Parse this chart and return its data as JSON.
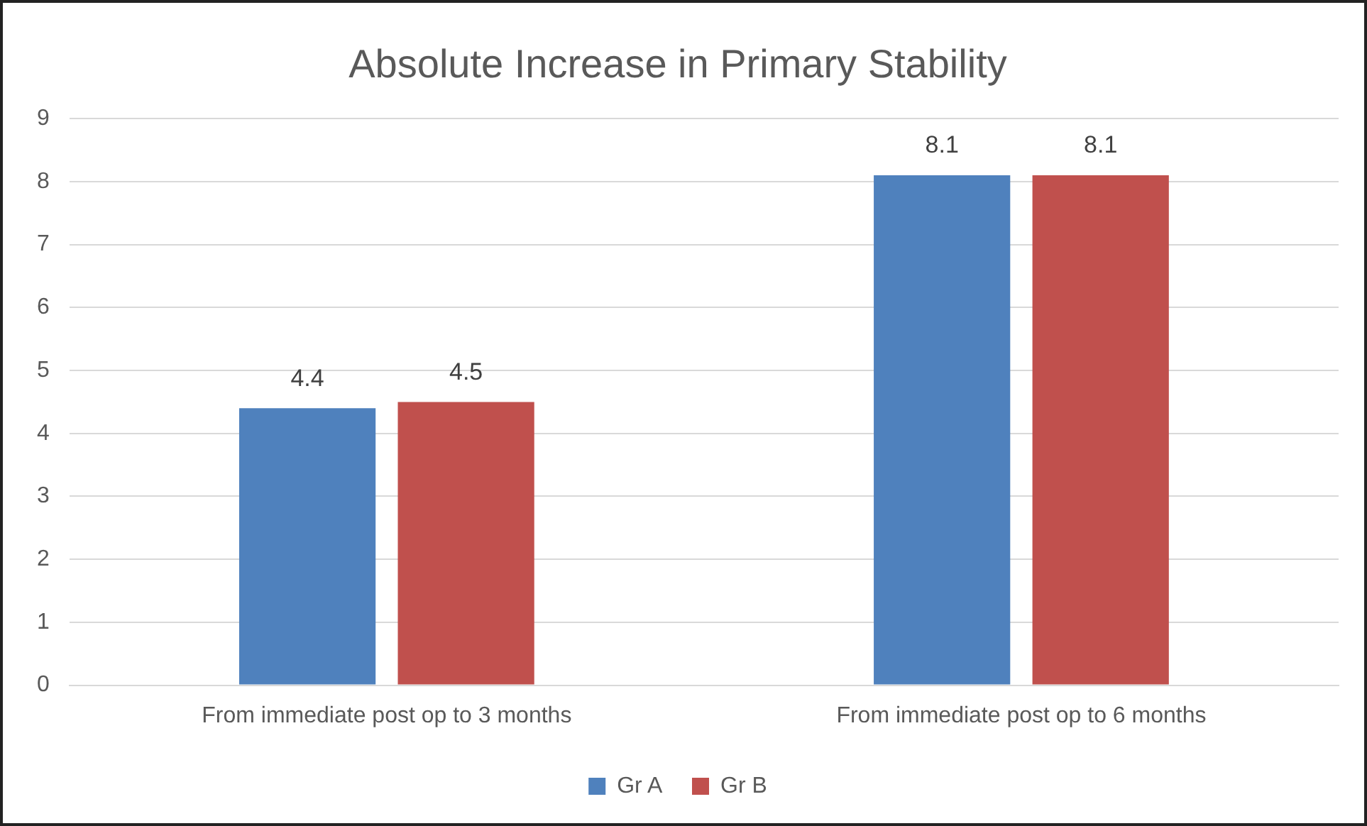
{
  "chart_data": {
    "type": "bar",
    "title": "Absolute Increase in Primary Stability",
    "categories": [
      "From immediate post op to 3 months",
      "From immediate post op to 6 months"
    ],
    "series": [
      {
        "name": "Gr A",
        "color": "#4f81bd",
        "values": [
          4.4,
          8.1
        ]
      },
      {
        "name": "Gr B",
        "color": "#c0504d",
        "values": [
          4.5,
          8.1
        ]
      }
    ],
    "ylim": [
      0,
      9
    ],
    "yticks": [
      0,
      1,
      2,
      3,
      4,
      5,
      6,
      7,
      8,
      9
    ],
    "grid": "y",
    "legend": "bottom",
    "data_labels": true
  }
}
